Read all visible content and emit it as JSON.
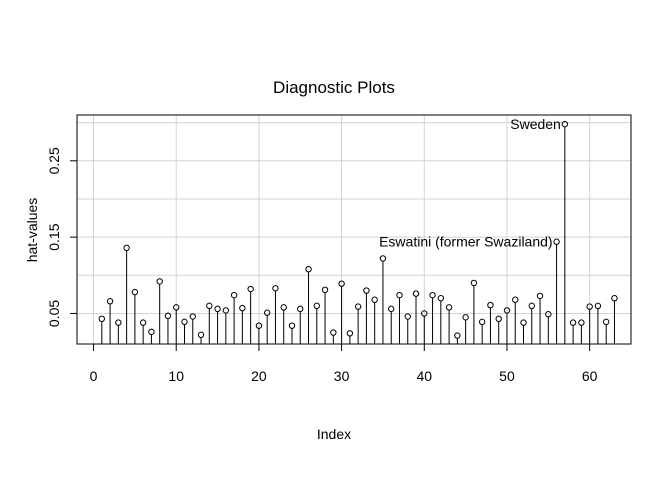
{
  "chart_data": {
    "type": "scatter",
    "style": "vertical-lines-with-open-circles",
    "title": "Diagnostic Plots",
    "xlabel": "Index",
    "ylabel": "hat-values",
    "xlim": [
      -2,
      65
    ],
    "ylim": [
      0.01,
      0.31
    ],
    "xticks": [
      0,
      10,
      20,
      30,
      40,
      50,
      60
    ],
    "yticks": [
      0.05,
      0.15,
      0.25
    ],
    "ytick_labels": [
      "0.05",
      "0.15",
      "0.25"
    ],
    "grid": true,
    "x": [
      1,
      2,
      3,
      4,
      5,
      6,
      7,
      8,
      9,
      10,
      11,
      12,
      13,
      14,
      15,
      16,
      17,
      18,
      19,
      20,
      21,
      22,
      23,
      24,
      25,
      26,
      27,
      28,
      29,
      30,
      31,
      32,
      33,
      34,
      35,
      36,
      37,
      38,
      39,
      40,
      41,
      42,
      43,
      44,
      45,
      46,
      47,
      48,
      49,
      50,
      51,
      52,
      53,
      54,
      55,
      56,
      57,
      58,
      59,
      60,
      61,
      62,
      63
    ],
    "values": [
      0.043,
      0.066,
      0.038,
      0.136,
      0.078,
      0.038,
      0.026,
      0.092,
      0.047,
      0.058,
      0.039,
      0.046,
      0.022,
      0.06,
      0.056,
      0.054,
      0.074,
      0.057,
      0.082,
      0.034,
      0.051,
      0.083,
      0.058,
      0.034,
      0.056,
      0.108,
      0.06,
      0.081,
      0.025,
      0.089,
      0.024,
      0.059,
      0.08,
      0.068,
      0.122,
      0.056,
      0.074,
      0.046,
      0.076,
      0.05,
      0.074,
      0.07,
      0.058,
      0.021,
      0.045,
      0.09,
      0.039,
      0.061,
      0.043,
      0.054,
      0.068,
      0.038,
      0.06,
      0.073,
      0.049,
      0.144,
      0.298,
      0.038,
      0.038,
      0.059,
      0.06,
      0.039,
      0.07
    ],
    "annotations": [
      {
        "index": 56,
        "label": "Eswatini (former Swaziland)"
      },
      {
        "index": 57,
        "label": "Sweden"
      }
    ],
    "color": "#000000",
    "grid_color": "#d3d3d3"
  }
}
